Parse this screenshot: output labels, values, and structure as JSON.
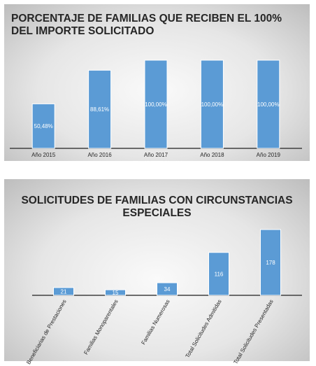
{
  "chart_data": [
    {
      "type": "bar",
      "title": "PORCENTAJE DE FAMILIAS  QUE RECIBEN EL 100% DEL IMPORTE SOLICITADO",
      "categories": [
        "Año 2015",
        "Año 2016",
        "Año 2017",
        "Año 2018",
        "Año 2019"
      ],
      "values": [
        50.48,
        88.61,
        100,
        100,
        100
      ],
      "data_labels": [
        "50,48%",
        "88,61%",
        "100,00%",
        "100,00%",
        "100,00%"
      ],
      "ylim": [
        0,
        100
      ],
      "grid": false,
      "legend": "none",
      "bar_color": "#5b9bd5"
    },
    {
      "type": "bar",
      "title": "SOLICITUDES DE FAMILIAS CON CIRCUNSTANCIAS ESPECIALES",
      "categories": [
        "Beneficiarias de Prestaciones",
        "Familias Monoparentales",
        "Familias Numerosas",
        "Total Solicitudes Admitidas",
        "Total Solicitudes Presentadas"
      ],
      "values": [
        21,
        15,
        34,
        116,
        178
      ],
      "data_labels": [
        "21",
        "15",
        "34",
        "116",
        "178"
      ],
      "ylim": [
        0,
        178
      ],
      "grid": false,
      "legend": "none",
      "bar_color": "#5b9bd5"
    }
  ]
}
